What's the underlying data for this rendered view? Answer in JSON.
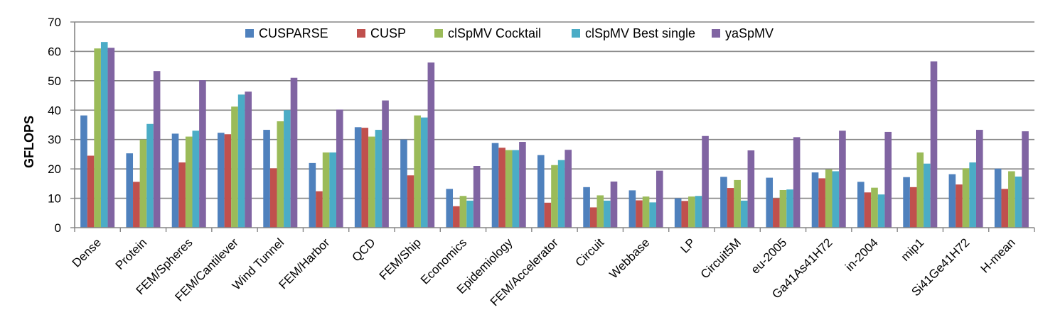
{
  "chart_data": {
    "type": "bar",
    "title": "",
    "xlabel": "",
    "ylabel": "GFLOPS",
    "ylim": [
      0,
      70
    ],
    "yticks": [
      0,
      10,
      20,
      30,
      40,
      50,
      60,
      70
    ],
    "grid": true,
    "legend_position": "top",
    "categories": [
      "Dense",
      "Protein",
      "FEM/Spheres",
      "FEM/Cantilever",
      "Wind Tunnel",
      "FEM/Harbor",
      "QCD",
      "FEM/Ship",
      "Economics",
      "Epidemiology",
      "FEM/Accelerator",
      "Circuit",
      "Webbase",
      "LP",
      "Circuit5M",
      "eu-2005",
      "Ga41As41H72",
      "in-2004",
      "mip1",
      "Si41Ge41H72",
      "H-mean"
    ],
    "series": [
      {
        "name": "CUSPARSE",
        "color": "#4f81bd",
        "values": [
          38.2,
          25.3,
          32.0,
          32.3,
          33.3,
          22.0,
          34.2,
          30.0,
          13.2,
          28.8,
          24.7,
          13.8,
          12.7,
          10.0,
          17.3,
          17.0,
          18.8,
          15.6,
          17.2,
          18.2,
          20.1
        ]
      },
      {
        "name": "CUSP",
        "color": "#c0504d",
        "values": [
          24.5,
          15.6,
          22.2,
          31.8,
          20.2,
          12.4,
          34.0,
          17.8,
          7.3,
          27.2,
          8.5,
          6.9,
          9.3,
          9.1,
          13.5,
          10.0,
          16.8,
          12.0,
          13.8,
          14.7,
          13.2
        ]
      },
      {
        "name": "clSpMV Cocktail",
        "color": "#9bbb59",
        "values": [
          61.0,
          30.0,
          31.0,
          41.2,
          36.2,
          25.6,
          31.0,
          38.2,
          10.8,
          26.4,
          21.3,
          11.0,
          10.6,
          10.6,
          16.2,
          12.8,
          19.8,
          13.6,
          25.6,
          20.2,
          19.2
        ]
      },
      {
        "name": "clSpMV Best single",
        "color": "#4bacc6",
        "values": [
          63.2,
          35.3,
          33.0,
          45.3,
          40.0,
          25.6,
          33.3,
          37.5,
          9.2,
          26.4,
          23.0,
          9.2,
          8.6,
          10.8,
          9.2,
          13.0,
          19.2,
          11.3,
          21.8,
          22.2,
          17.4
        ]
      },
      {
        "name": "yaSpMV",
        "color": "#8064a2",
        "values": [
          61.2,
          53.3,
          50.2,
          46.3,
          51.0,
          40.2,
          43.3,
          56.2,
          21.0,
          29.2,
          26.5,
          15.7,
          19.4,
          31.2,
          26.3,
          30.8,
          33.0,
          32.6,
          56.6,
          33.3,
          32.8
        ]
      }
    ]
  }
}
